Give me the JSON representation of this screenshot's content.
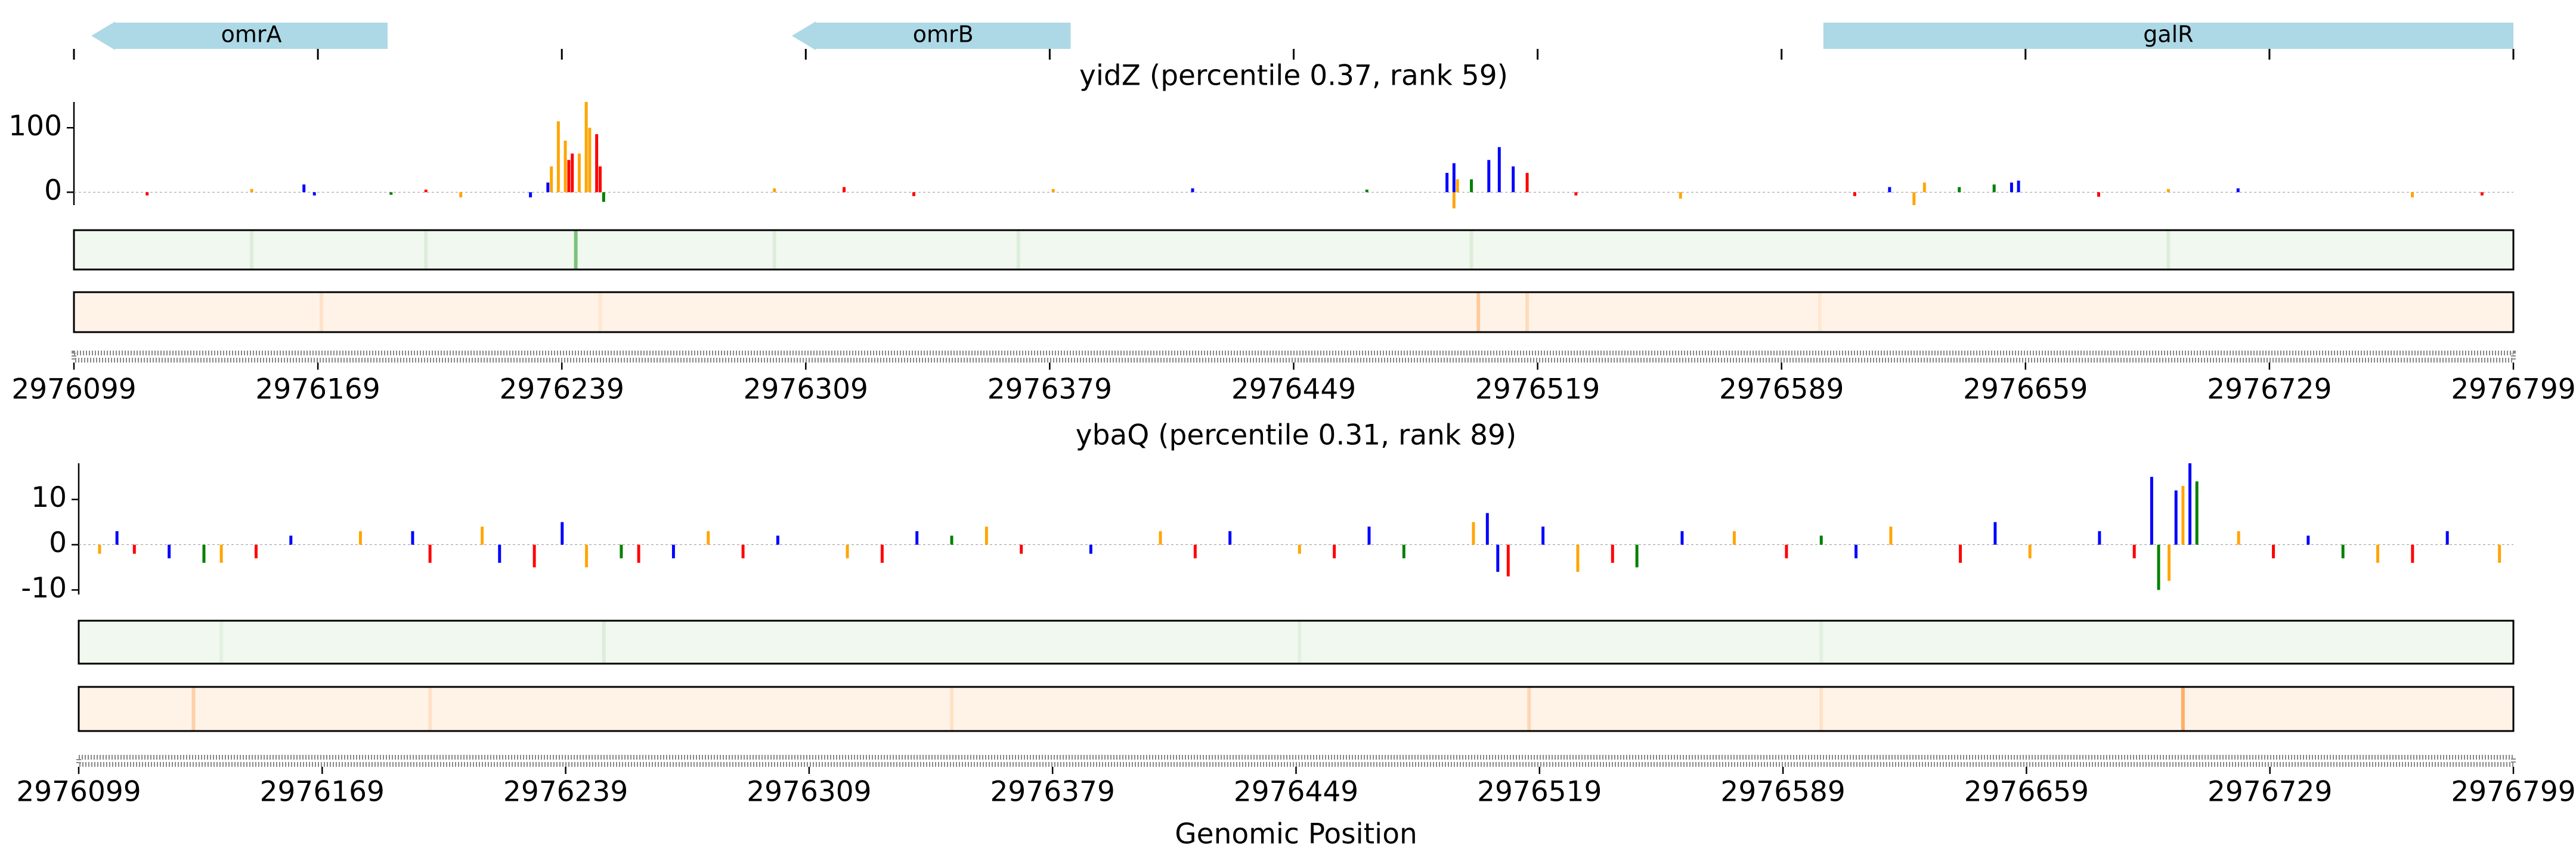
{
  "chart_data": [
    {
      "type": "genes",
      "xlim": [
        2976099,
        2976799
      ],
      "xticks": [
        2976099,
        2976169,
        2976239,
        2976309,
        2976379,
        2976449,
        2976519,
        2976589,
        2976659,
        2976729,
        2976799
      ],
      "color": "#add8e6",
      "genes": [
        {
          "name": "omrA",
          "start": 2976104,
          "end": 2976189,
          "strand": "-"
        },
        {
          "name": "omrB",
          "start": 2976305,
          "end": 2976385,
          "strand": "-"
        },
        {
          "name": "galR",
          "start": 2976601,
          "end": 2976799,
          "strand": "+"
        }
      ]
    },
    {
      "type": "logo",
      "title": "yidZ (percentile 0.37, rank 59)",
      "xlim": [
        2976099,
        2976799
      ],
      "xticks": [
        2976099,
        2976169,
        2976239,
        2976309,
        2976379,
        2976449,
        2976519,
        2976589,
        2976659,
        2976729,
        2976799
      ],
      "ylim": [
        -20,
        140
      ],
      "yticks": [
        0,
        100
      ],
      "series": [
        {
          "color": "#ffa500",
          "x": [
            2976150,
            2976210,
            2976236,
            2976238,
            2976240,
            2976244,
            2976246,
            2976247,
            2976300,
            2976380,
            2976495,
            2976496,
            2976560,
            2976627,
            2976630,
            2976700,
            2976770
          ],
          "values": [
            5,
            -8,
            40,
            110,
            80,
            60,
            140,
            100,
            6,
            5,
            -25,
            20,
            -10,
            -20,
            15,
            5,
            -8
          ]
        },
        {
          "color": "#ff0000",
          "x": [
            2976120,
            2976200,
            2976241,
            2976242,
            2976249,
            2976250,
            2976320,
            2976340,
            2976516,
            2976530,
            2976610,
            2976680,
            2976790
          ],
          "values": [
            -5,
            4,
            50,
            60,
            90,
            40,
            8,
            -6,
            30,
            -5,
            -6,
            -7,
            -5
          ]
        },
        {
          "color": "#0000ff",
          "x": [
            2976165,
            2976168,
            2976230,
            2976235,
            2976420,
            2976493,
            2976495,
            2976505,
            2976508,
            2976512,
            2976620,
            2976655,
            2976657,
            2976720
          ],
          "values": [
            12,
            -5,
            -8,
            15,
            6,
            30,
            45,
            50,
            70,
            40,
            8,
            15,
            18,
            6
          ]
        },
        {
          "color": "#008000",
          "x": [
            2976190,
            2976251,
            2976470,
            2976500,
            2976640,
            2976650
          ],
          "values": [
            -4,
            -15,
            4,
            20,
            8,
            12
          ]
        }
      ],
      "heatmaps": [
        {
          "color": "#2ca02c",
          "background": "#f1f8ef",
          "x": [
            2976150,
            2976200,
            2976243,
            2976300,
            2976370,
            2976500,
            2976700
          ],
          "values": [
            0.1,
            0.1,
            0.6,
            0.1,
            0.1,
            0.1,
            0.1
          ]
        },
        {
          "color": "#ff7f0e",
          "background": "#fff3e8",
          "x": [
            2976170,
            2976250,
            2976502,
            2976516,
            2976600
          ],
          "values": [
            0.15,
            0.1,
            0.35,
            0.2,
            0.1
          ]
        }
      ]
    },
    {
      "type": "logo",
      "title": "ybaQ (percentile 0.31, rank 89)",
      "xlim": [
        2976099,
        2976799
      ],
      "xticks": [
        2976099,
        2976169,
        2976239,
        2976309,
        2976379,
        2976449,
        2976519,
        2976589,
        2976659,
        2976729,
        2976799
      ],
      "ylim": [
        -11,
        18
      ],
      "yticks": [
        -10,
        0,
        10
      ],
      "xlabel": "Genomic Position",
      "series": [
        {
          "color": "#0000ff",
          "x": [
            2976110,
            2976125,
            2976160,
            2976195,
            2976220,
            2976238,
            2976270,
            2976300,
            2976340,
            2976390,
            2976430,
            2976470,
            2976504,
            2976507,
            2976520,
            2976560,
            2976610,
            2976650,
            2976680,
            2976695,
            2976702,
            2976706,
            2976740,
            2976780
          ],
          "values": [
            3,
            -3,
            2,
            3,
            -4,
            5,
            -3,
            2,
            3,
            -2,
            3,
            4,
            7,
            -6,
            4,
            3,
            -3,
            5,
            3,
            15,
            12,
            18,
            2,
            3
          ]
        },
        {
          "color": "#ffa500",
          "x": [
            2976105,
            2976140,
            2976180,
            2976215,
            2976245,
            2976280,
            2976320,
            2976360,
            2976410,
            2976450,
            2976500,
            2976530,
            2976575,
            2976620,
            2976660,
            2976700,
            2976704,
            2976720,
            2976760,
            2976795
          ],
          "values": [
            -2,
            -4,
            3,
            4,
            -5,
            3,
            -3,
            4,
            3,
            -2,
            5,
            -6,
            3,
            4,
            -3,
            -8,
            13,
            3,
            -4,
            -4
          ]
        },
        {
          "color": "#ff0000",
          "x": [
            2976115,
            2976150,
            2976200,
            2976230,
            2976260,
            2976290,
            2976330,
            2976370,
            2976420,
            2976460,
            2976510,
            2976540,
            2976590,
            2976640,
            2976690,
            2976730,
            2976770
          ],
          "values": [
            -2,
            -3,
            -4,
            -5,
            -4,
            -3,
            -4,
            -2,
            -3,
            -3,
            -7,
            -4,
            -3,
            -4,
            -3,
            -3,
            -4
          ]
        },
        {
          "color": "#008000",
          "x": [
            2976135,
            2976255,
            2976350,
            2976480,
            2976547,
            2976600,
            2976697,
            2976708,
            2976750
          ],
          "values": [
            -4,
            -3,
            2,
            -3,
            -5,
            2,
            -10,
            14,
            -3
          ]
        }
      ],
      "heatmaps": [
        {
          "color": "#2ca02c",
          "background": "#f1f8ef",
          "x": [
            2976140,
            2976250,
            2976450,
            2976600
          ],
          "values": [
            0.08,
            0.1,
            0.08,
            0.08
          ]
        },
        {
          "color": "#ff7f0e",
          "background": "#fff3e8",
          "x": [
            2976132,
            2976200,
            2976350,
            2976516,
            2976600,
            2976704
          ],
          "values": [
            0.3,
            0.15,
            0.15,
            0.25,
            0.15,
            0.6
          ]
        }
      ]
    }
  ]
}
